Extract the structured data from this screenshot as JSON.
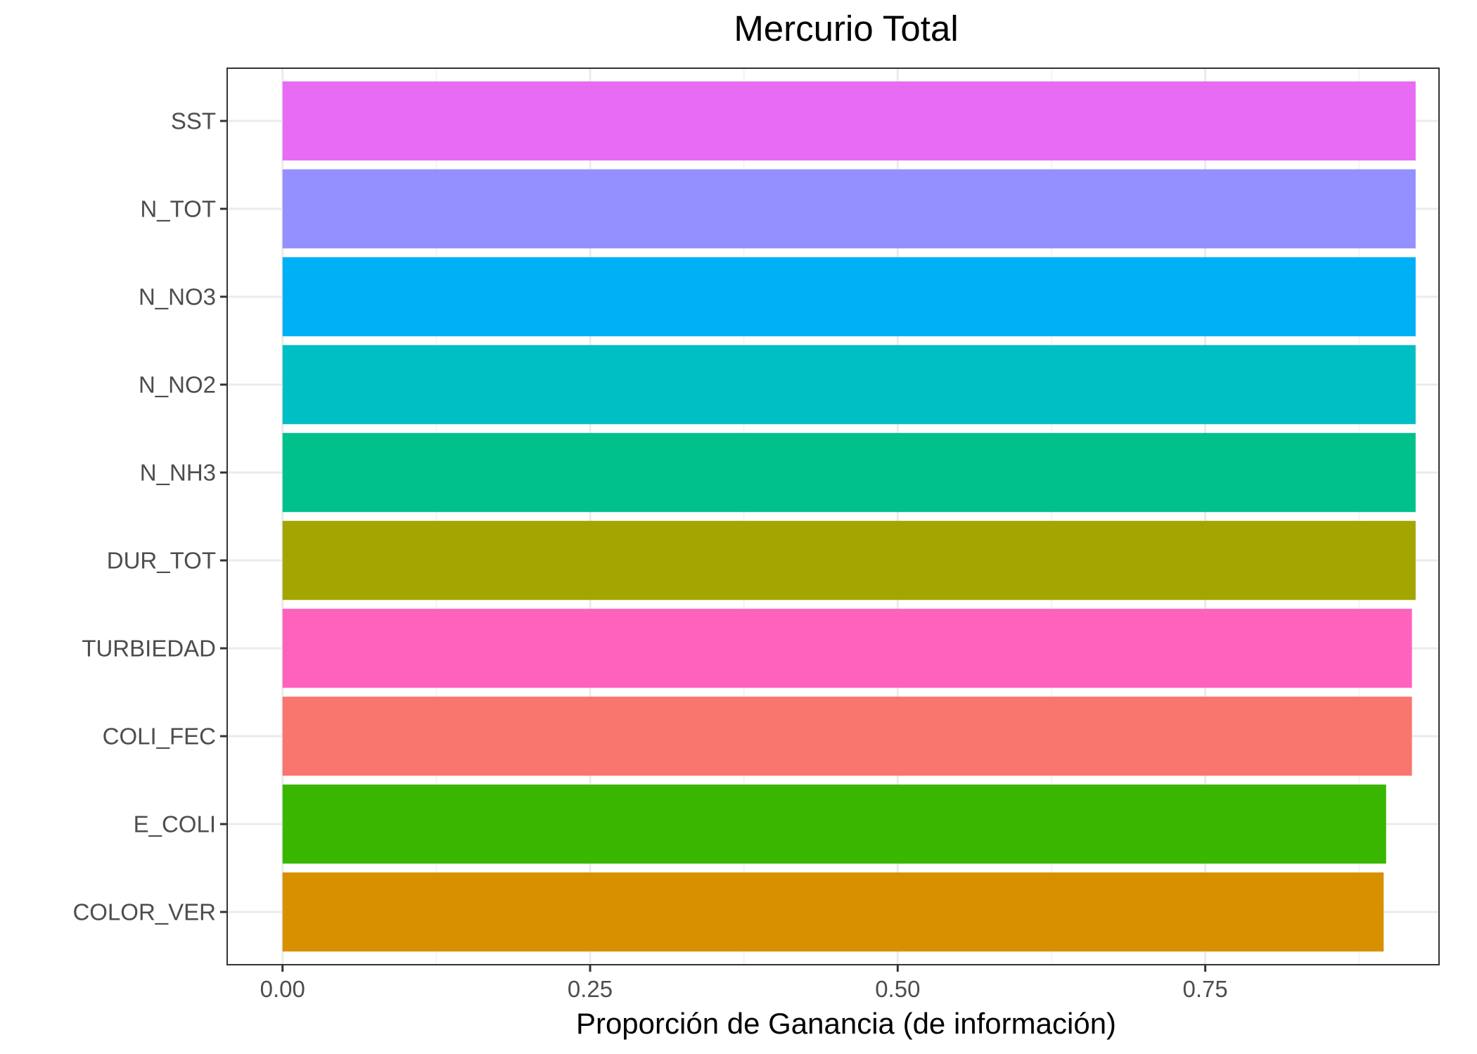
{
  "chart_data": {
    "type": "bar",
    "orientation": "horizontal",
    "title": "Mercurio Total",
    "xlabel": "Proporción de Ganancia (de información)",
    "ylabel": "",
    "xlim": [
      -0.045,
      0.94
    ],
    "xticks": [
      "0.00",
      "0.25",
      "0.50",
      "0.75"
    ],
    "xtick_values": [
      0,
      0.25,
      0.5,
      0.75
    ],
    "grid": true,
    "legend": "none",
    "categories": [
      "SST",
      "N_TOT",
      "N_NO3",
      "N_NO2",
      "N_NH3",
      "DUR_TOT",
      "TURBIEDAD",
      "COLI_FEC",
      "E_COLI",
      "COLOR_VER"
    ],
    "values": [
      0.921,
      0.921,
      0.921,
      0.921,
      0.921,
      0.921,
      0.918,
      0.918,
      0.897,
      0.895
    ],
    "colors": [
      "#E76BF3",
      "#9590FF",
      "#00B0F6",
      "#00BFC4",
      "#00C08B",
      "#A3A500",
      "#FF62BC",
      "#F8766D",
      "#39B600",
      "#D89000"
    ]
  }
}
